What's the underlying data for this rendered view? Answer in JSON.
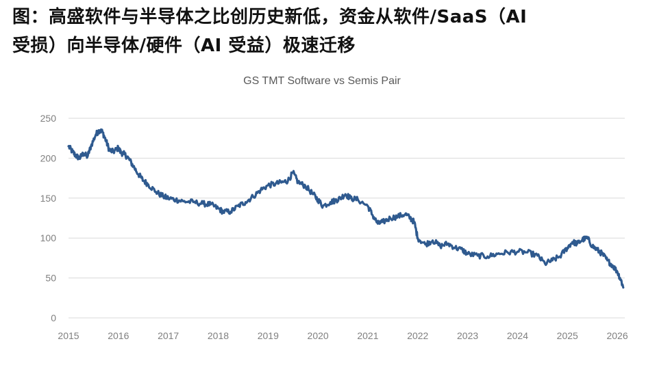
{
  "heading": {
    "line1": "图：高盛软件与半导体之比创历史新低，资金从软件/SaaS（AI",
    "line2": "受损）向半导体/硬件（AI 受益）极速迁移"
  },
  "colors": {
    "line": "#2F5A8F",
    "grid": "#D9D9D9",
    "axis_text": "#7F7F7F",
    "title": "#595959"
  },
  "chart_data": {
    "type": "line",
    "title": "GS TMT Software vs Semis Pair",
    "xlabel": "",
    "ylabel": "",
    "xlim": [
      2015,
      2026.15
    ],
    "ylim": [
      0,
      250
    ],
    "yticks": [
      0,
      50,
      100,
      150,
      200,
      250
    ],
    "xticks": [
      2015,
      2016,
      2017,
      2018,
      2019,
      2020,
      2021,
      2022,
      2023,
      2024,
      2025,
      2026
    ],
    "grid": true,
    "series": [
      {
        "name": "GS TMT Software vs Semis Pair",
        "x": [
          2015.0,
          2015.08,
          2015.15,
          2015.22,
          2015.3,
          2015.38,
          2015.45,
          2015.55,
          2015.62,
          2015.68,
          2015.75,
          2015.82,
          2015.9,
          2016.0,
          2016.05,
          2016.12,
          2016.2,
          2016.3,
          2016.4,
          2016.5,
          2016.6,
          2016.75,
          2016.9,
          2017.0,
          2017.15,
          2017.3,
          2017.5,
          2017.7,
          2017.85,
          2018.0,
          2018.1,
          2018.25,
          2018.4,
          2018.55,
          2018.7,
          2018.85,
          2019.0,
          2019.15,
          2019.3,
          2019.4,
          2019.5,
          2019.6,
          2019.75,
          2019.9,
          2020.0,
          2020.1,
          2020.25,
          2020.35,
          2020.45,
          2020.55,
          2020.65,
          2020.8,
          2021.0,
          2021.1,
          2021.2,
          2021.3,
          2021.45,
          2021.6,
          2021.75,
          2021.85,
          2021.93,
          2022.0,
          2022.15,
          2022.3,
          2022.45,
          2022.6,
          2022.75,
          2022.9,
          2023.0,
          2023.2,
          2023.4,
          2023.6,
          2023.8,
          2024.0,
          2024.2,
          2024.4,
          2024.55,
          2024.7,
          2024.85,
          2025.0,
          2025.1,
          2025.2,
          2025.3,
          2025.4,
          2025.5,
          2025.6,
          2025.7,
          2025.8,
          2025.9,
          2026.0,
          2026.07,
          2026.12
        ],
        "values": [
          215,
          208,
          203,
          200,
          206,
          202,
          215,
          230,
          235,
          233,
          222,
          210,
          208,
          213,
          207,
          205,
          200,
          190,
          180,
          172,
          167,
          158,
          152,
          150,
          148,
          146,
          145,
          143,
          142,
          137,
          133,
          133,
          140,
          145,
          152,
          160,
          166,
          168,
          170,
          172,
          182,
          170,
          165,
          155,
          148,
          140,
          145,
          147,
          150,
          155,
          150,
          148,
          140,
          128,
          118,
          120,
          125,
          127,
          130,
          125,
          120,
          100,
          92,
          97,
          90,
          93,
          88,
          85,
          80,
          78,
          77,
          80,
          82,
          83,
          82,
          78,
          68,
          72,
          77,
          88,
          95,
          93,
          98,
          100,
          90,
          85,
          80,
          72,
          66,
          58,
          48,
          38
        ]
      }
    ]
  }
}
